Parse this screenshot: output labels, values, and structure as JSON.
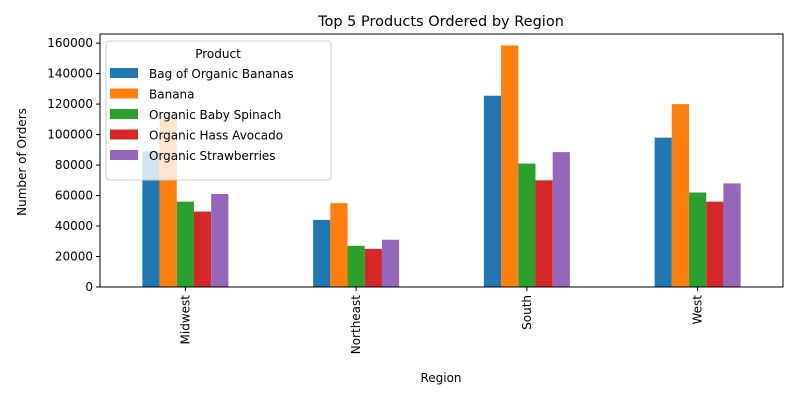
{
  "chart_data": {
    "type": "bar",
    "title": "Top 5 Products Ordered by Region",
    "xlabel": "Region",
    "ylabel": "Number of Orders",
    "ylim": [
      0,
      166000
    ],
    "yticks": [
      0,
      20000,
      40000,
      60000,
      80000,
      100000,
      120000,
      140000,
      160000
    ],
    "categories": [
      "Midwest",
      "Northeast",
      "South",
      "West"
    ],
    "legend": {
      "title": "Product",
      "placement": "top-left"
    },
    "series": [
      {
        "name": "Bag of Organic Bananas",
        "color": "#1f77b4",
        "values": [
          89000,
          44000,
          125500,
          98000
        ]
      },
      {
        "name": "Banana",
        "color": "#ff7f0e",
        "values": [
          111000,
          55000,
          158500,
          120000
        ]
      },
      {
        "name": "Organic Baby Spinach",
        "color": "#2ca02c",
        "values": [
          56000,
          27000,
          81000,
          62000
        ]
      },
      {
        "name": "Organic Hass Avocado",
        "color": "#d62728",
        "values": [
          49500,
          25000,
          70000,
          56000
        ]
      },
      {
        "name": "Organic Strawberries",
        "color": "#9467bd",
        "values": [
          61000,
          31000,
          88500,
          68000
        ]
      }
    ],
    "grid": false
  }
}
